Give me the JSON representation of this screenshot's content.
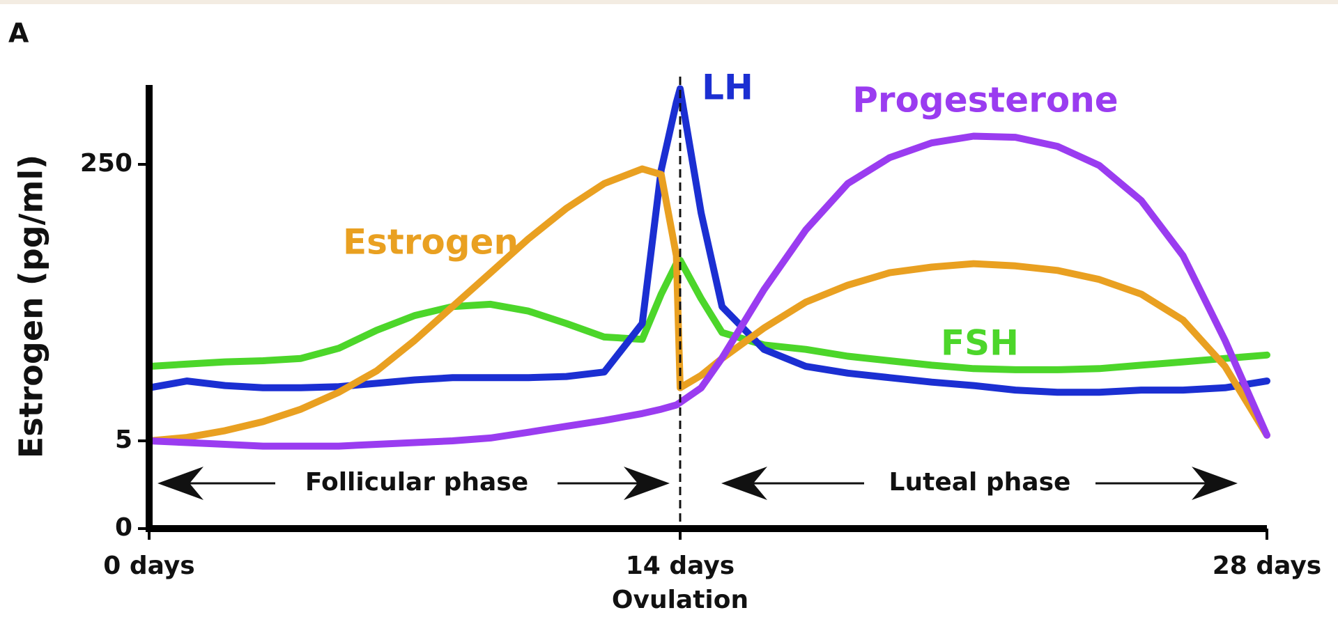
{
  "chart_data": {
    "type": "line",
    "panel_label": "A",
    "ylabel": "Estrogen (pg/ml)",
    "annotations": {
      "ovulation": "Ovulation",
      "follicular": "Follicular phase",
      "luteal": "Luteal phase"
    },
    "x": [
      0,
      1,
      2,
      3,
      4,
      5,
      6,
      7,
      8,
      9,
      10,
      11,
      12,
      13,
      13.5,
      13.9,
      14,
      14.5,
      15,
      16,
      17,
      18,
      19,
      20,
      21,
      22,
      23,
      24,
      25,
      26,
      27,
      28
    ],
    "xlim": [
      0,
      28
    ],
    "xticks": [
      {
        "value": 0,
        "label": "0 days"
      },
      {
        "value": 14,
        "label": "14 days"
      },
      {
        "value": 28,
        "label": "28 days"
      }
    ],
    "ylim": [
      0,
      320
    ],
    "yticks": [
      0,
      5,
      250
    ],
    "series": [
      {
        "name": "FSH",
        "color": "#4cd62a",
        "values": [
          71,
          73,
          75,
          76,
          78,
          87,
          103,
          116,
          124,
          126,
          120,
          109,
          97,
          95,
          135,
          162,
          165,
          131,
          101,
          90,
          86,
          80,
          76,
          72,
          69,
          68,
          68,
          69,
          72,
          75,
          78,
          81
        ]
      },
      {
        "name": "LH",
        "color": "#1b2fd2",
        "values": [
          52,
          58,
          54,
          52,
          52,
          53,
          56,
          59,
          61,
          61,
          61,
          62,
          66,
          109,
          245,
          305,
          317,
          207,
          124,
          86,
          71,
          65,
          61,
          57,
          54,
          50,
          48,
          48,
          50,
          50,
          52,
          58
        ]
      },
      {
        "name": "Estrogen",
        "color": "#e9a021",
        "values": [
          5,
          8,
          14,
          22,
          33,
          48,
          67,
          94,
          124,
          154,
          184,
          211,
          233,
          246,
          241,
          169,
          52,
          63,
          78,
          105,
          128,
          143,
          154,
          159,
          162,
          160,
          156,
          148,
          135,
          112,
          71,
          10
        ]
      },
      {
        "name": "Progesterone",
        "color": "#9a3cf0",
        "values": [
          5,
          4.9,
          4.8,
          4.7,
          4.7,
          4.7,
          4.8,
          4.9,
          5,
          7.5,
          12.6,
          17.9,
          23.1,
          29.2,
          33,
          36.8,
          39,
          51.9,
          78.4,
          139,
          192,
          233,
          256,
          269,
          275,
          274,
          266,
          249,
          218,
          169,
          94,
          10
        ]
      }
    ]
  }
}
